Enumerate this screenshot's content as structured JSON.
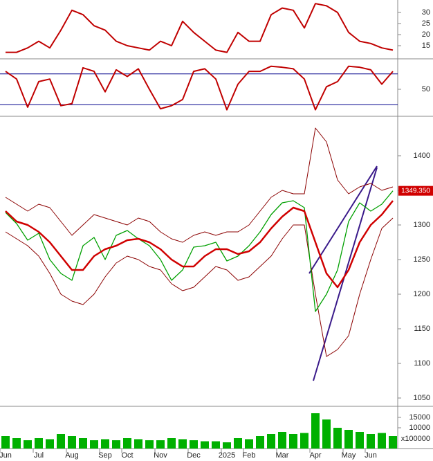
{
  "chart_data": [
    {
      "type": "line",
      "ylim": [
        10,
        35
      ],
      "yticks": [
        15,
        20,
        25,
        30
      ],
      "series": [
        {
          "color": "#c00000",
          "values": [
            12,
            12,
            14,
            17,
            14,
            22,
            31,
            29,
            24,
            22,
            17,
            15,
            14,
            13,
            17,
            15,
            26,
            21,
            17,
            13,
            12,
            21,
            17,
            17,
            29,
            32,
            31,
            23,
            34,
            33,
            30,
            21,
            17,
            16,
            14,
            13
          ]
        }
      ]
    },
    {
      "type": "line",
      "ylim": [
        0,
        100
      ],
      "yticks": [
        50
      ],
      "reference_lines": [
        80,
        20
      ],
      "reference_color": "#00008b",
      "series": [
        {
          "color": "#c00000",
          "values": [
            85,
            70,
            15,
            65,
            70,
            18,
            22,
            92,
            85,
            45,
            88,
            75,
            90,
            50,
            12,
            18,
            30,
            85,
            90,
            70,
            10,
            60,
            85,
            85,
            95,
            93,
            90,
            70,
            10,
            55,
            65,
            95,
            93,
            88,
            60,
            85
          ]
        }
      ]
    },
    {
      "type": "line",
      "ylim": [
        1040,
        1453
      ],
      "yticks": [
        1050,
        1100,
        1150,
        1200,
        1250,
        1300,
        1350,
        1400
      ],
      "last_price": {
        "value": 1349.35,
        "label": "1349.350",
        "color": "#d00000"
      },
      "series": [
        {
          "color": "#8b0000",
          "width": 1,
          "values": [
            1340,
            1330,
            1320,
            1330,
            1325,
            1305,
            1285,
            1300,
            1315,
            1310,
            1305,
            1300,
            1310,
            1305,
            1290,
            1280,
            1275,
            1285,
            1290,
            1285,
            1290,
            1290,
            1300,
            1320,
            1340,
            1350,
            1345,
            1345,
            1440,
            1420,
            1365,
            1345,
            1355,
            1360,
            1350,
            1355
          ]
        },
        {
          "color": "#8b0000",
          "width": 1,
          "values": [
            1290,
            1280,
            1270,
            1255,
            1230,
            1200,
            1190,
            1185,
            1200,
            1225,
            1245,
            1255,
            1250,
            1240,
            1235,
            1215,
            1205,
            1210,
            1225,
            1240,
            1235,
            1220,
            1225,
            1240,
            1255,
            1280,
            1300,
            1300,
            1200,
            1110,
            1120,
            1140,
            1200,
            1250,
            1295,
            1310
          ]
        },
        {
          "color": "#00a000",
          "width": 1.3,
          "values": [
            1318,
            1302,
            1278,
            1288,
            1250,
            1230,
            1220,
            1270,
            1282,
            1250,
            1285,
            1292,
            1280,
            1270,
            1250,
            1220,
            1235,
            1268,
            1270,
            1275,
            1248,
            1255,
            1270,
            1290,
            1315,
            1332,
            1335,
            1325,
            1175,
            1200,
            1235,
            1305,
            1332,
            1320,
            1330,
            1349.35
          ]
        },
        {
          "color": "#d00000",
          "width": 2.5,
          "values": [
            1320,
            1305,
            1300,
            1290,
            1275,
            1255,
            1235,
            1235,
            1255,
            1265,
            1270,
            1278,
            1280,
            1275,
            1265,
            1250,
            1240,
            1240,
            1255,
            1265,
            1265,
            1258,
            1262,
            1275,
            1295,
            1312,
            1325,
            1320,
            1275,
            1230,
            1210,
            1235,
            1275,
            1300,
            1315,
            1335
          ]
        }
      ]
    },
    {
      "type": "bar",
      "ylim": [
        0,
        19000
      ],
      "yticks": [
        10000,
        15000
      ],
      "unit_label": "x100000",
      "color": "#00b000",
      "categories": [
        "Jun",
        null,
        null,
        "Jul",
        null,
        null,
        "Aug",
        null,
        null,
        "Sep",
        null,
        "Oct",
        null,
        null,
        "Nov",
        null,
        null,
        "Dec",
        null,
        null,
        "2025",
        null,
        "Feb",
        null,
        null,
        "Mar",
        null,
        null,
        "Apr",
        null,
        null,
        "May",
        null,
        "Jun",
        null,
        null
      ],
      "values": [
        6000,
        5000,
        4000,
        5000,
        4500,
        7000,
        6000,
        5000,
        4000,
        4500,
        4000,
        5000,
        4500,
        4000,
        4000,
        5000,
        4500,
        4000,
        3500,
        3500,
        3000,
        5000,
        4500,
        6000,
        7000,
        8000,
        7000,
        7500,
        17000,
        14000,
        10000,
        9000,
        8000,
        7000,
        7500,
        6000
      ]
    }
  ]
}
